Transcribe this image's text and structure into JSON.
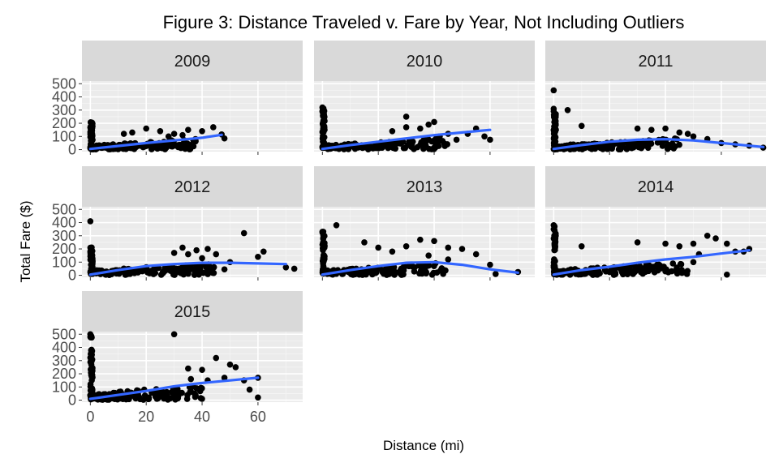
{
  "chart_data": {
    "type": "scatter",
    "title": "Figure 3: Distance Traveled v. Fare by Year, Not Including Outliers",
    "xlabel": "Distance (mi)",
    "ylabel": "Total Fare ($)",
    "xlim": [
      -3,
      76
    ],
    "ylim": [
      -15,
      520
    ],
    "x_ticks": [
      0,
      20,
      40,
      60
    ],
    "y_ticks": [
      0,
      100,
      200,
      300,
      400,
      500
    ],
    "trend_color": "#3366ff",
    "point_color": "#000000",
    "facets": [
      {
        "label": "2009",
        "trend": [
          [
            0,
            5
          ],
          [
            10,
            28
          ],
          [
            20,
            50
          ],
          [
            30,
            70
          ],
          [
            40,
            90
          ],
          [
            47,
            112
          ]
        ],
        "dense_max_x": 38,
        "dense_max_y": 80,
        "xcol_max_y": 220,
        "outliers": [
          [
            35,
            150
          ],
          [
            40,
            140
          ],
          [
            44,
            170
          ],
          [
            47,
            115
          ],
          [
            48,
            85
          ],
          [
            30,
            120
          ],
          [
            20,
            160
          ],
          [
            25,
            140
          ],
          [
            15,
            130
          ],
          [
            12,
            120
          ],
          [
            28,
            100
          ],
          [
            33,
            110
          ]
        ]
      },
      {
        "label": "2010",
        "trend": [
          [
            0,
            5
          ],
          [
            10,
            35
          ],
          [
            20,
            60
          ],
          [
            30,
            85
          ],
          [
            40,
            110
          ],
          [
            50,
            130
          ],
          [
            60,
            150
          ]
        ],
        "dense_max_x": 45,
        "dense_max_y": 85,
        "xcol_max_y": 320,
        "outliers": [
          [
            0,
            320
          ],
          [
            0,
            290
          ],
          [
            30,
            250
          ],
          [
            38,
            190
          ],
          [
            40,
            210
          ],
          [
            35,
            160
          ],
          [
            45,
            120
          ],
          [
            48,
            75
          ],
          [
            52,
            120
          ],
          [
            55,
            160
          ],
          [
            60,
            75
          ],
          [
            58,
            100
          ],
          [
            42,
            100
          ],
          [
            30,
            170
          ],
          [
            25,
            140
          ]
        ]
      },
      {
        "label": "2011",
        "trend": [
          [
            0,
            5
          ],
          [
            10,
            35
          ],
          [
            20,
            60
          ],
          [
            30,
            75
          ],
          [
            40,
            80
          ],
          [
            50,
            70
          ],
          [
            60,
            50
          ],
          [
            70,
            30
          ],
          [
            75,
            20
          ]
        ],
        "dense_max_x": 45,
        "dense_max_y": 85,
        "xcol_max_y": 300,
        "outliers": [
          [
            0,
            450
          ],
          [
            0,
            310
          ],
          [
            5,
            300
          ],
          [
            10,
            180
          ],
          [
            30,
            160
          ],
          [
            35,
            150
          ],
          [
            40,
            160
          ],
          [
            45,
            130
          ],
          [
            50,
            100
          ],
          [
            55,
            80
          ],
          [
            60,
            50
          ],
          [
            65,
            40
          ],
          [
            70,
            30
          ],
          [
            75,
            15
          ],
          [
            48,
            120
          ]
        ]
      },
      {
        "label": "2012",
        "trend": [
          [
            0,
            5
          ],
          [
            10,
            40
          ],
          [
            20,
            70
          ],
          [
            30,
            85
          ],
          [
            40,
            95
          ],
          [
            50,
            95
          ],
          [
            60,
            90
          ],
          [
            70,
            85
          ]
        ],
        "dense_max_x": 45,
        "dense_max_y": 95,
        "xcol_max_y": 220,
        "outliers": [
          [
            0,
            410
          ],
          [
            30,
            170
          ],
          [
            35,
            160
          ],
          [
            38,
            190
          ],
          [
            40,
            130
          ],
          [
            42,
            200
          ],
          [
            45,
            160
          ],
          [
            50,
            100
          ],
          [
            55,
            320
          ],
          [
            60,
            140
          ],
          [
            62,
            180
          ],
          [
            70,
            60
          ],
          [
            73,
            50
          ],
          [
            48,
            45
          ],
          [
            33,
            210
          ]
        ]
      },
      {
        "label": "2013",
        "trend": [
          [
            0,
            5
          ],
          [
            10,
            40
          ],
          [
            20,
            70
          ],
          [
            30,
            95
          ],
          [
            40,
            100
          ],
          [
            50,
            80
          ],
          [
            60,
            45
          ],
          [
            70,
            20
          ]
        ],
        "dense_max_x": 45,
        "dense_max_y": 95,
        "xcol_max_y": 340,
        "outliers": [
          [
            0,
            330
          ],
          [
            5,
            380
          ],
          [
            15,
            250
          ],
          [
            20,
            210
          ],
          [
            30,
            220
          ],
          [
            35,
            270
          ],
          [
            40,
            260
          ],
          [
            45,
            210
          ],
          [
            50,
            200
          ],
          [
            55,
            160
          ],
          [
            60,
            80
          ],
          [
            62,
            10
          ],
          [
            70,
            25
          ],
          [
            45,
            120
          ],
          [
            25,
            180
          ],
          [
            38,
            150
          ]
        ]
      },
      {
        "label": "2014",
        "trend": [
          [
            0,
            5
          ],
          [
            10,
            40
          ],
          [
            20,
            65
          ],
          [
            30,
            95
          ],
          [
            40,
            120
          ],
          [
            50,
            140
          ],
          [
            60,
            165
          ],
          [
            70,
            190
          ]
        ],
        "dense_max_x": 48,
        "dense_max_y": 100,
        "xcol_max_y": 380,
        "outliers": [
          [
            0,
            380
          ],
          [
            0,
            350
          ],
          [
            10,
            220
          ],
          [
            30,
            250
          ],
          [
            40,
            240
          ],
          [
            45,
            220
          ],
          [
            50,
            240
          ],
          [
            52,
            160
          ],
          [
            55,
            300
          ],
          [
            58,
            280
          ],
          [
            62,
            240
          ],
          [
            65,
            180
          ],
          [
            68,
            180
          ],
          [
            70,
            200
          ],
          [
            62,
            5
          ],
          [
            50,
            100
          ]
        ]
      },
      {
        "label": "2015",
        "trend": [
          [
            0,
            10
          ],
          [
            10,
            40
          ],
          [
            20,
            70
          ],
          [
            30,
            105
          ],
          [
            40,
            130
          ],
          [
            50,
            150
          ],
          [
            60,
            170
          ]
        ],
        "dense_max_x": 40,
        "dense_max_y": 120,
        "xcol_max_y": 500,
        "outliers": [
          [
            0,
            500
          ],
          [
            0,
            480
          ],
          [
            30,
            500
          ],
          [
            35,
            240
          ],
          [
            40,
            230
          ],
          [
            45,
            320
          ],
          [
            50,
            270
          ],
          [
            52,
            250
          ],
          [
            55,
            150
          ],
          [
            57,
            80
          ],
          [
            60,
            170
          ],
          [
            60,
            20
          ],
          [
            48,
            170
          ],
          [
            42,
            150
          ],
          [
            38,
            90
          ],
          [
            36,
            160
          ]
        ]
      }
    ]
  }
}
